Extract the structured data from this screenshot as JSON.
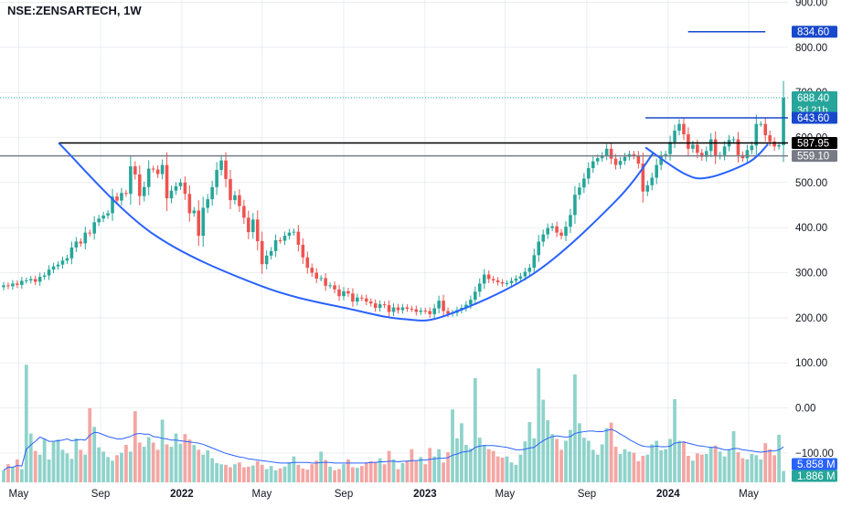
{
  "header": {
    "symbol_title": "NSE:ZENSARTECH, 1W"
  },
  "colors": {
    "up": "#26a69a",
    "down": "#ef5350",
    "vol_up": "#8fd3cb",
    "vol_down": "#f4a6a3",
    "cup_line": "#2962ff",
    "resistance_line": "#000000",
    "support_line": "#787b86",
    "target_line": "#1848cc",
    "handle_top_line": "#1848cc",
    "grid": "#e0e3eb",
    "axis_text": "#131722"
  },
  "chart_data": {
    "type": "candlestick",
    "title": "NSE:ZENSARTECH, 1W",
    "y_price_range": [
      -165,
      905
    ],
    "y_ticks": [
      "900.00",
      "800.00",
      "700.00",
      "600.00",
      "500.00",
      "400.00",
      "300.00",
      "200.00",
      "100.00",
      "0.00",
      "−100.00"
    ],
    "y_tick_values": [
      900,
      800,
      700,
      600,
      500,
      400,
      300,
      200,
      100,
      0,
      -100
    ],
    "x_ticks": [
      {
        "label": "May",
        "date": "2021-05-01"
      },
      {
        "label": "Sep",
        "date": "2021-09-01"
      },
      {
        "label": "2022",
        "date": "2022-01-01"
      },
      {
        "label": "May",
        "date": "2022-05-01"
      },
      {
        "label": "Sep",
        "date": "2022-09-01"
      },
      {
        "label": "2023",
        "date": "2023-01-01"
      },
      {
        "label": "May",
        "date": "2023-05-01"
      },
      {
        "label": "Sep",
        "date": "2023-09-01"
      },
      {
        "label": "2024",
        "date": "2024-01-01"
      },
      {
        "label": "May",
        "date": "2024-05-01"
      }
    ],
    "x_range": [
      "2021-04-03",
      "2024-06-29"
    ],
    "price_labels": [
      {
        "text": "834.60",
        "value": 834.6,
        "kind": "target"
      },
      {
        "text": "688.40",
        "value": 688.4,
        "kind": "last_price",
        "sub": "3d 21h"
      },
      {
        "text": "643.60",
        "value": 643.6,
        "kind": "handle_top"
      },
      {
        "text": "587.95",
        "value": 587.95,
        "kind": "resistance"
      },
      {
        "text": "559.10",
        "value": 559.1,
        "kind": "support"
      },
      {
        "text": "5.858 M",
        "value": 5.858,
        "kind": "volume_ma"
      },
      {
        "text": "1.886 M",
        "value": 1.886,
        "kind": "volume"
      }
    ],
    "horizontal_lines": [
      {
        "name": "target",
        "value": 834.6,
        "from": "2024-01-31",
        "to": "2024-05-26"
      },
      {
        "name": "handle_top",
        "value": 643.6,
        "from": "2023-11-28",
        "to": "2024-06-29"
      },
      {
        "name": "resistance",
        "value": 587.95,
        "from": "2021-06-30",
        "to": "2024-06-29"
      },
      {
        "name": "support",
        "value": 559.1,
        "from": "2021-04-03",
        "to": "2024-06-29"
      }
    ],
    "last_price_line": {
      "value": 688.4
    },
    "cup_curve": [
      [
        "2021-06-30",
        588
      ],
      [
        "2021-11-15",
        390
      ],
      [
        "2022-05-01",
        270
      ],
      [
        "2022-09-15",
        218
      ],
      [
        "2022-12-01",
        197
      ],
      [
        "2023-02-01",
        205
      ],
      [
        "2023-06-15",
        300
      ],
      [
        "2023-10-15",
        460
      ],
      [
        "2023-12-10",
        566
      ]
    ],
    "handle_curve": [
      [
        "2023-11-28",
        578
      ],
      [
        "2024-01-25",
        520
      ],
      [
        "2024-03-01",
        511
      ],
      [
        "2024-05-01",
        545
      ],
      [
        "2024-05-30",
        585
      ]
    ],
    "candles_weekly_close": [
      272,
      270,
      276,
      273,
      282,
      283,
      286,
      280,
      291,
      294,
      307,
      314,
      318,
      327,
      332,
      356,
      369,
      365,
      389,
      387,
      412,
      420,
      427,
      432,
      469,
      460,
      477,
      475,
      536,
      518,
      470,
      490,
      531,
      529,
      519,
      539,
      465,
      482,
      492,
      500,
      475,
      432,
      438,
      382,
      444,
      463,
      490,
      528,
      549,
      508,
      461,
      472,
      448,
      422,
      390,
      418,
      370,
      319,
      338,
      348,
      372,
      371,
      382,
      389,
      391,
      362,
      334,
      311,
      300,
      287,
      288,
      271,
      272,
      263,
      248,
      259,
      254,
      236,
      245,
      243,
      236,
      232,
      222,
      230,
      228,
      213,
      223,
      217,
      223,
      220,
      219,
      213,
      216,
      215,
      208,
      221,
      238,
      215,
      209,
      211,
      217,
      222,
      229,
      240,
      258,
      276,
      296,
      286,
      283,
      279,
      276,
      277,
      282,
      287,
      292,
      302,
      311,
      339,
      369,
      385,
      399,
      403,
      389,
      382,
      402,
      428,
      473,
      489,
      509,
      532,
      547,
      554,
      560,
      575,
      553,
      539,
      548,
      557,
      563,
      559,
      542,
      480,
      494,
      511,
      539,
      558,
      563,
      590,
      615,
      630,
      607,
      575,
      584,
      566,
      557,
      570,
      596,
      558,
      561,
      580,
      595,
      596,
      561,
      554,
      572,
      582,
      630,
      630,
      605,
      591,
      580,
      583,
      688
    ],
    "volume_million": [
      2.0,
      3.0,
      2.5,
      3.8,
      2.2,
      19.5,
      8.1,
      5.2,
      4.6,
      7.2,
      3.8,
      6.7,
      7.1,
      5.4,
      4.8,
      3.9,
      7.3,
      5.4,
      4.6,
      12.3,
      9.2,
      5.8,
      5.1,
      4.2,
      3.6,
      4.5,
      4.9,
      6.2,
      5.1,
      11.8,
      6.6,
      5.9,
      7.5,
      6.6,
      5.4,
      10.4,
      6.3,
      5.9,
      8.1,
      6.4,
      8.0,
      7.1,
      6.2,
      5.4,
      4.6,
      5.3,
      4.0,
      3.2,
      3.0,
      2.9,
      2.5,
      3.0,
      3.3,
      2.5,
      2.6,
      2.8,
      3.5,
      2.9,
      2.2,
      2.7,
      2.0,
      2.3,
      2.6,
      3.3,
      4.3,
      2.9,
      2.3,
      2.1,
      3.0,
      3.6,
      5.1,
      3.7,
      2.6,
      2.0,
      2.2,
      3.0,
      3.8,
      2.5,
      2.4,
      2.7,
      3.3,
      3.5,
      3.4,
      4.0,
      3.0,
      5.2,
      3.8,
      2.2,
      3.2,
      3.6,
      5.5,
      3.5,
      4.2,
      3.0,
      5.7,
      4.3,
      5.5,
      3.3,
      5.0,
      12.1,
      7.3,
      9.8,
      6.2,
      5.6,
      17.3,
      7.4,
      6.2,
      5.5,
      5.2,
      4.3,
      4.1,
      4.3,
      3.3,
      2.9,
      4.6,
      6.8,
      10.0,
      7.3,
      18.9,
      13.7,
      10.3,
      8.0,
      7.2,
      5.4,
      6.9,
      8.7,
      17.9,
      9.8,
      7.4,
      6.9,
      5.4,
      4.6,
      6.3,
      9.0,
      9.9,
      5.9,
      4.7,
      5.5,
      5.1,
      4.9,
      3.5,
      4.4,
      4.6,
      6.3,
      6.9,
      5.3,
      5.5,
      7.2,
      13.8,
      6.9,
      6.8,
      4.4,
      3.6,
      4.8,
      4.6,
      4.7,
      5.9,
      6.1,
      5.1,
      4.3,
      5.4,
      8.5,
      5.0,
      4.0,
      3.8,
      4.7,
      4.5,
      3.8,
      6.5,
      5.5,
      4.5,
      7.9,
      1.886
    ],
    "volume_ma_million": [
      2.0,
      2.5,
      2.5,
      2.8,
      2.7,
      5.5,
      6.2,
      6.8,
      7.5,
      7.2,
      6.8,
      6.8,
      6.9,
      7.0,
      7.2,
      6.9,
      7.0,
      7.1,
      7.0,
      7.8,
      8.3,
      8.2,
      7.9,
      7.6,
      7.4,
      7.2,
      7.2,
      7.4,
      7.6,
      8.0,
      8.1,
      8.0,
      8.0,
      7.6,
      7.5,
      7.3,
      7.2,
      7.0,
      7.0,
      6.9,
      6.8,
      6.7,
      6.6,
      6.5,
      6.3,
      6.0,
      5.7,
      5.4,
      5.1,
      4.8,
      4.6,
      4.4,
      4.2,
      4.1,
      3.9,
      3.8,
      3.7,
      3.6,
      3.5,
      3.4,
      3.3,
      3.2,
      3.2,
      3.2,
      3.3,
      3.3,
      3.3,
      3.3,
      3.2,
      3.2,
      3.3,
      3.3,
      3.3,
      3.2,
      3.2,
      3.2,
      3.2,
      3.2,
      3.2,
      3.2,
      3.2,
      3.3,
      3.3,
      3.4,
      3.4,
      3.5,
      3.5,
      3.4,
      3.5,
      3.5,
      3.6,
      3.6,
      3.7,
      3.7,
      3.8,
      3.9,
      4.0,
      4.0,
      4.1,
      4.5,
      4.7,
      5.0,
      5.1,
      5.2,
      5.8,
      6.0,
      6.1,
      6.1,
      6.1,
      6.0,
      5.9,
      5.8,
      5.6,
      5.4,
      5.4,
      5.5,
      5.7,
      5.8,
      6.4,
      6.9,
      7.3,
      7.6,
      7.7,
      7.6,
      7.5,
      7.6,
      8.1,
      8.3,
      8.4,
      8.5,
      8.5,
      8.4,
      8.4,
      8.6,
      8.8,
      8.5,
      8.0,
      7.6,
      7.1,
      6.7,
      6.3,
      6.0,
      5.9,
      5.9,
      6.0,
      5.9,
      5.9,
      6.0,
      6.5,
      6.6,
      6.7,
      6.5,
      6.3,
      6.1,
      6.0,
      5.9,
      5.8,
      5.8,
      5.6,
      5.4,
      5.4,
      5.6,
      5.6,
      5.4,
      5.3,
      5.2,
      5.1,
      5.0,
      5.1,
      5.2,
      5.2,
      5.4,
      5.858
    ],
    "volume_axis_max_million": 20
  }
}
